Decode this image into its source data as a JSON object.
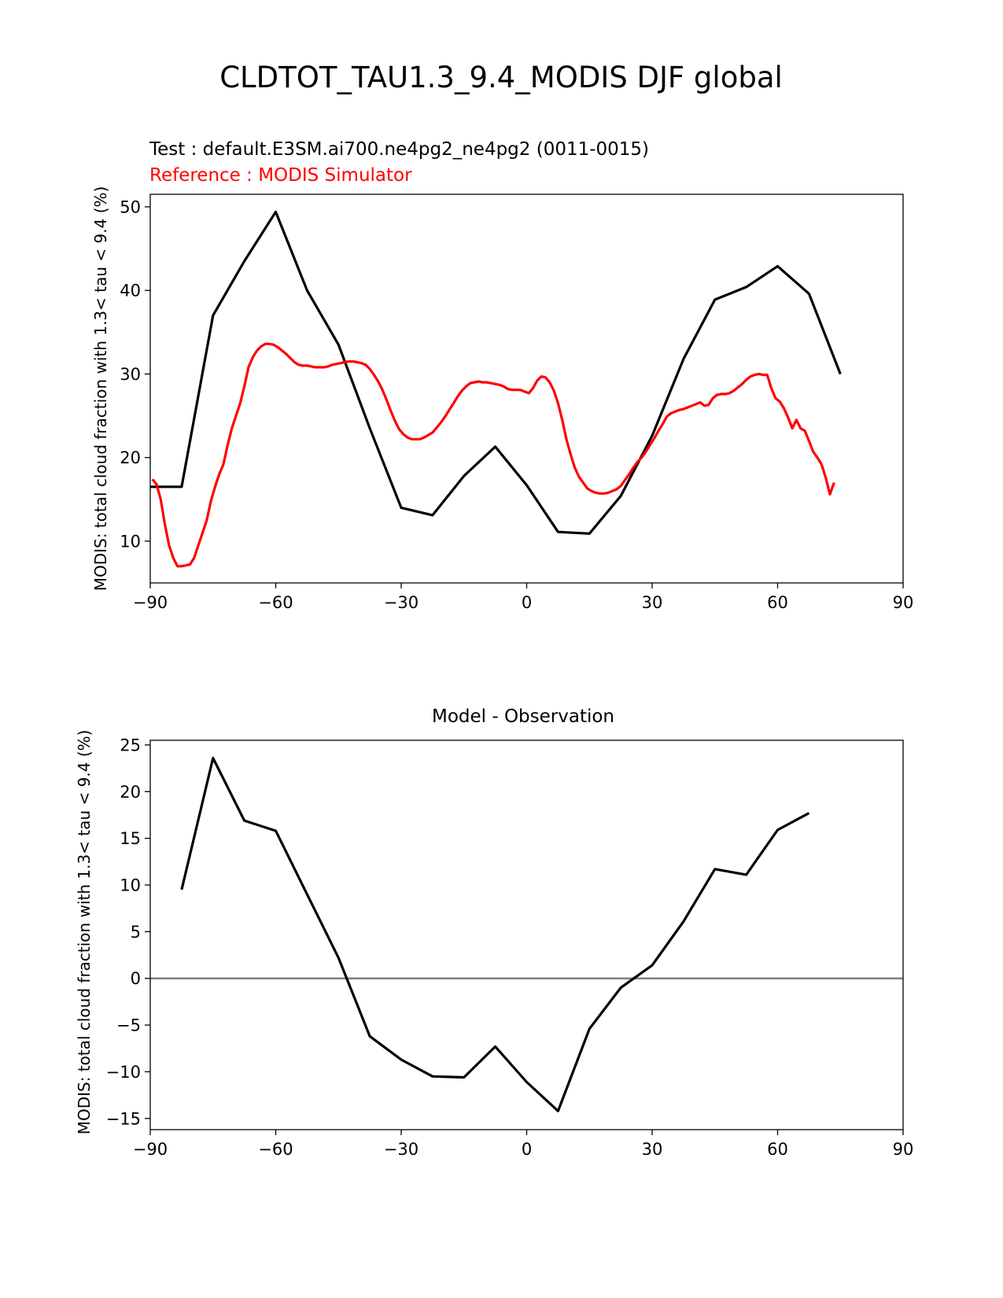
{
  "figure": {
    "title": "CLDTOT_TAU1.3_9.4_MODIS DJF global"
  },
  "colors": {
    "test": "#000000",
    "reference": "#ff0000",
    "zero_line": "#808080"
  },
  "chart_data": [
    {
      "type": "line",
      "title_test": "Test : default.E3SM.ai700.ne4pg2_ne4pg2 (0011-0015)",
      "title_reference": "Reference : MODIS Simulator",
      "xlabel": "",
      "ylabel": "MODIS: total cloud fraction with 1.3< tau < 9.4 (%)",
      "xlim": [
        -90,
        90
      ],
      "ylim": [
        5,
        51.5
      ],
      "xticks": [
        -90,
        -60,
        -30,
        0,
        30,
        60,
        90
      ],
      "xtick_labels": [
        "−90",
        "−60",
        "−30",
        "0",
        "30",
        "60",
        "90"
      ],
      "yticks": [
        10,
        20,
        30,
        40,
        50
      ],
      "ytick_labels": [
        "10",
        "20",
        "30",
        "40",
        "50"
      ],
      "grid": false,
      "series": [
        {
          "role": "test",
          "x": [
            -90,
            -82.5,
            -75,
            -67.5,
            -60,
            -52.5,
            -45,
            -37.5,
            -30,
            -22.5,
            -15,
            -7.5,
            0,
            7.5,
            15,
            22.5,
            30,
            37.5,
            45,
            52.5,
            60,
            67.5,
            75
          ],
          "y": [
            16.5,
            16.5,
            37,
            43.5,
            49.4,
            40,
            33.5,
            23.5,
            14,
            13.1,
            17.8,
            21.3,
            16.7,
            11.1,
            10.9,
            15.4,
            22.6,
            31.8,
            38.9,
            40.4,
            42.9,
            39.6,
            30
          ]
        },
        {
          "role": "reference",
          "x": [
            -89.5,
            -88.5,
            -87.5,
            -86.5,
            -85.5,
            -84.5,
            -83.5,
            -82.5,
            -81.5,
            -80.5,
            -79.5,
            -78.5,
            -77.5,
            -76.5,
            -75.5,
            -74.5,
            -73.5,
            -72.5,
            -71.5,
            -70.5,
            -69.5,
            -68.5,
            -67.5,
            -66.5,
            -65.5,
            -64.5,
            -63.5,
            -62.5,
            -61.5,
            -60.5,
            -59.5,
            -58.5,
            -57.5,
            -56.5,
            -55.5,
            -54.5,
            -53.5,
            -52.5,
            -51.5,
            -50.5,
            -49.5,
            -48.5,
            -47.5,
            -46.5,
            -45.5,
            -44.5,
            -43.5,
            -42.5,
            -41.5,
            -40.5,
            -39.5,
            -38.5,
            -37.5,
            -36.5,
            -35.5,
            -34.5,
            -33.5,
            -32.5,
            -31.5,
            -30.5,
            -29.5,
            -28.5,
            -27.5,
            -26.5,
            -25.5,
            -24.5,
            -23.5,
            -22.5,
            -21.5,
            -20.5,
            -19.5,
            -18.5,
            -17.5,
            -16.5,
            -15.5,
            -14.5,
            -13.5,
            -12.5,
            -11.5,
            -10.5,
            -9.5,
            -8.5,
            -7.5,
            -6.5,
            -5.5,
            -4.5,
            -3.5,
            -2.5,
            -1.5,
            -0.5,
            0.5,
            1.5,
            2.5,
            3.5,
            4.5,
            5.5,
            6.5,
            7.5,
            8.5,
            9.5,
            10.5,
            11.5,
            12.5,
            13.5,
            14.5,
            15.5,
            16.5,
            17.5,
            18.5,
            19.5,
            20.5,
            21.5,
            22.5,
            23.5,
            24.5,
            25.5,
            26.5,
            27.5,
            28.5,
            29.5,
            30.5,
            31.5,
            32.5,
            33.5,
            34.5,
            35.5,
            36.5,
            37.5,
            38.5,
            39.5,
            40.5,
            41.5,
            42.5,
            43.5,
            44.5,
            45.5,
            46.5,
            47.5,
            48.5,
            49.5,
            50.5,
            51.5,
            52.5,
            53.5,
            54.5,
            55.5,
            56.5,
            57.5,
            58.5,
            59.5,
            60.5,
            61.5,
            62.5,
            63.5,
            64.5,
            65.5,
            66.5,
            67.5,
            68.5,
            69.5,
            70.5,
            71.5,
            72.5,
            73.5
          ],
          "y": [
            17.4,
            16.8,
            15,
            12,
            9.5,
            8,
            7,
            7,
            7.1,
            7.2,
            8,
            9.5,
            11,
            12.5,
            14.8,
            16.5,
            18,
            19.2,
            21.5,
            23.5,
            25,
            26.5,
            28.5,
            30.8,
            32,
            32.8,
            33.3,
            33.6,
            33.6,
            33.5,
            33.2,
            32.8,
            32.4,
            31.9,
            31.4,
            31.1,
            31,
            31,
            30.9,
            30.8,
            30.8,
            30.8,
            30.9,
            31.1,
            31.2,
            31.3,
            31.4,
            31.5,
            31.5,
            31.4,
            31.3,
            31.1,
            30.6,
            29.9,
            29.1,
            28.1,
            26.9,
            25.6,
            24.4,
            23.4,
            22.8,
            22.4,
            22.2,
            22.2,
            22.2,
            22.4,
            22.7,
            23,
            23.6,
            24.2,
            24.9,
            25.7,
            26.5,
            27.3,
            28,
            28.5,
            28.9,
            29,
            29.1,
            29,
            29,
            28.9,
            28.8,
            28.7,
            28.5,
            28.2,
            28.1,
            28.1,
            28.1,
            27.9,
            27.7,
            28.3,
            29.2,
            29.7,
            29.6,
            29,
            28,
            26.5,
            24.5,
            22.2,
            20.4,
            18.8,
            17.7,
            17,
            16.3,
            16,
            15.8,
            15.7,
            15.7,
            15.8,
            16,
            16.2,
            16.6,
            17.3,
            18,
            18.8,
            19.5,
            20,
            20.7,
            21.5,
            22.3,
            23.2,
            24,
            24.9,
            25.3,
            25.5,
            25.7,
            25.8,
            26,
            26.2,
            26.4,
            26.6,
            26.2,
            26.3,
            27.1,
            27.5,
            27.6,
            27.6,
            27.7,
            28,
            28.4,
            28.8,
            29.3,
            29.7,
            29.9,
            30,
            29.9,
            29.9,
            28.3,
            27.1,
            26.7,
            25.9,
            24.8,
            23.5,
            24.5,
            23.5,
            23.2,
            22,
            20.7,
            20,
            19.2,
            17.6,
            15.6,
            17
          ]
        }
      ]
    },
    {
      "type": "line",
      "title": "Model - Observation",
      "xlabel": "",
      "ylabel": "MODIS: total cloud fraction with 1.3< tau < 9.4 (%)",
      "xlim": [
        -90,
        90
      ],
      "ylim": [
        -16.2,
        25.5
      ],
      "xticks": [
        -90,
        -60,
        -30,
        0,
        30,
        60,
        90
      ],
      "xtick_labels": [
        "−90",
        "−60",
        "−30",
        "0",
        "30",
        "60",
        "90"
      ],
      "yticks": [
        -15,
        -10,
        -5,
        0,
        5,
        10,
        15,
        20,
        25
      ],
      "ytick_labels": [
        "−15",
        "−10",
        "−5",
        "0",
        "5",
        "10",
        "15",
        "20",
        "25"
      ],
      "grid": false,
      "zero_line": 0,
      "series": [
        {
          "role": "difference",
          "x": [
            -82.5,
            -75,
            -67.5,
            -60,
            -52.5,
            -45,
            -37.5,
            -30,
            -22.5,
            -15,
            -7.5,
            0,
            7.5,
            15,
            22.5,
            30,
            37.5,
            45,
            52.5,
            60,
            67.5
          ],
          "y": [
            9.5,
            23.6,
            16.9,
            15.8,
            9,
            2.2,
            -6.2,
            -8.7,
            -10.5,
            -10.6,
            -7.3,
            -11.1,
            -14.2,
            -5.4,
            -1,
            1.4,
            6.1,
            11.7,
            11.1,
            15.9,
            17.7
          ]
        }
      ]
    }
  ]
}
